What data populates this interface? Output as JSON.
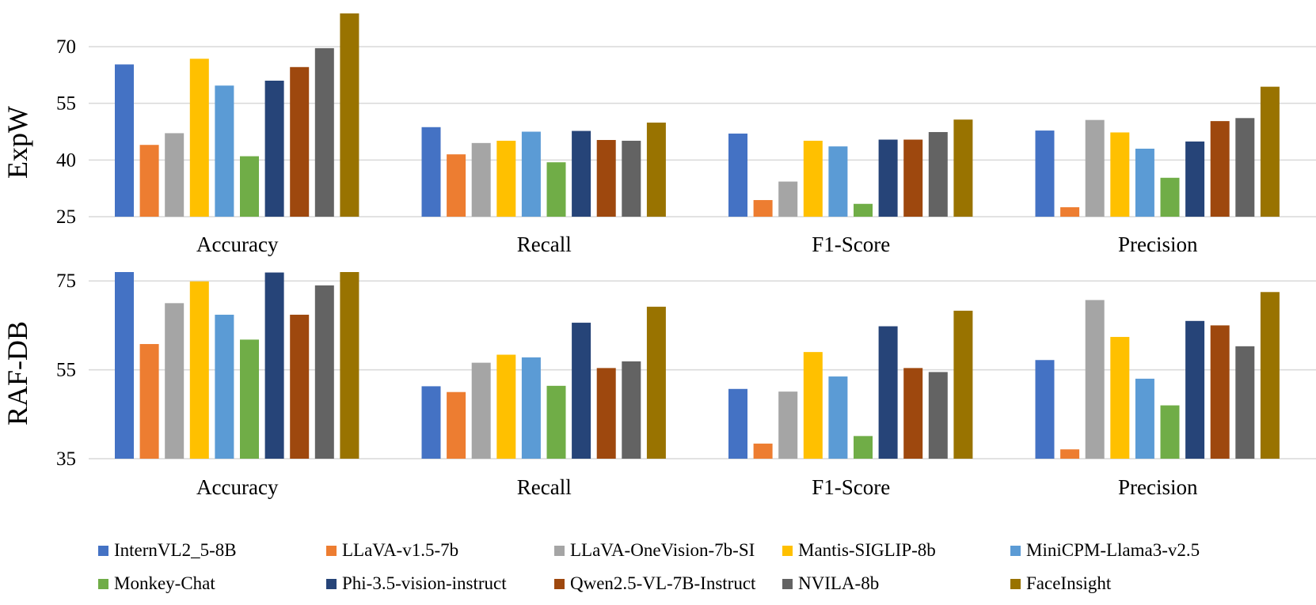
{
  "colors": {
    "gridline": "#d9d9d9",
    "series": [
      "#4472c4",
      "#ed7d31",
      "#a5a5a5",
      "#ffc000",
      "#5b9bd5",
      "#70ad47",
      "#264478",
      "#9e480e",
      "#636363",
      "#997300"
    ]
  },
  "chart_data": [
    {
      "type": "bar",
      "panel_label": "ExpW",
      "categories": [
        "Accuracy",
        "Recall",
        "F1-Score",
        "Precision"
      ],
      "ylim": [
        25,
        79
      ],
      "yticks": [
        25,
        40,
        55,
        70
      ],
      "grid": true,
      "series": [
        {
          "name": "InternVL2_5-8B",
          "values": [
            65.3,
            48.7,
            47.0,
            47.8
          ]
        },
        {
          "name": "LLaVA-v1.5-7b",
          "values": [
            44.0,
            41.5,
            29.4,
            27.5
          ]
        },
        {
          "name": "LLaVA-OneVision-7b-SI",
          "values": [
            47.1,
            44.5,
            34.3,
            50.6
          ]
        },
        {
          "name": "Mantis-SIGLIP-8b",
          "values": [
            66.8,
            45.1,
            45.1,
            47.3
          ]
        },
        {
          "name": "MiniCPM-Llama3-v2.5",
          "values": [
            59.7,
            47.5,
            43.6,
            43.0
          ]
        },
        {
          "name": "Monkey-Chat",
          "values": [
            41.0,
            39.4,
            28.4,
            35.3
          ]
        },
        {
          "name": "Phi-3.5-vision-instruct",
          "values": [
            61.0,
            47.7,
            45.4,
            44.9
          ]
        },
        {
          "name": "Qwen2.5-VL-7B-Instruct",
          "values": [
            64.6,
            45.3,
            45.4,
            50.3
          ]
        },
        {
          "name": "NVILA-8b",
          "values": [
            69.6,
            45.1,
            47.4,
            51.1
          ]
        },
        {
          "name": "FaceInsight",
          "values": [
            78.8,
            49.9,
            50.7,
            59.4
          ]
        }
      ]
    },
    {
      "type": "bar",
      "panel_label": "RAF-DB",
      "categories": [
        "Accuracy",
        "Recall",
        "F1-Score",
        "Precision"
      ],
      "ylim": [
        35,
        77
      ],
      "yticks": [
        35,
        55,
        75
      ],
      "grid": true,
      "series": [
        {
          "name": "InternVL2_5-8B",
          "values": [
            79.3,
            51.3,
            50.7,
            57.2
          ]
        },
        {
          "name": "LLaVA-v1.5-7b",
          "values": [
            60.8,
            50.0,
            38.4,
            37.1
          ]
        },
        {
          "name": "LLaVA-OneVision-7b-SI",
          "values": [
            70.0,
            56.6,
            50.1,
            70.7
          ]
        },
        {
          "name": "Mantis-SIGLIP-8b",
          "values": [
            74.9,
            58.4,
            59.0,
            62.4
          ]
        },
        {
          "name": "MiniCPM-Llama3-v2.5",
          "values": [
            67.4,
            57.8,
            53.5,
            53.0
          ]
        },
        {
          "name": "Monkey-Chat",
          "values": [
            61.8,
            51.4,
            40.1,
            47.0
          ]
        },
        {
          "name": "Phi-3.5-vision-instruct",
          "values": [
            76.9,
            65.6,
            64.8,
            66.0
          ]
        },
        {
          "name": "Qwen2.5-VL-7B-Instruct",
          "values": [
            67.4,
            55.4,
            55.4,
            65.0
          ]
        },
        {
          "name": "NVILA-8b",
          "values": [
            74.0,
            56.9,
            54.5,
            60.3
          ]
        },
        {
          "name": "FaceInsight",
          "values": [
            79.5,
            69.2,
            68.3,
            72.5
          ]
        }
      ]
    }
  ]
}
